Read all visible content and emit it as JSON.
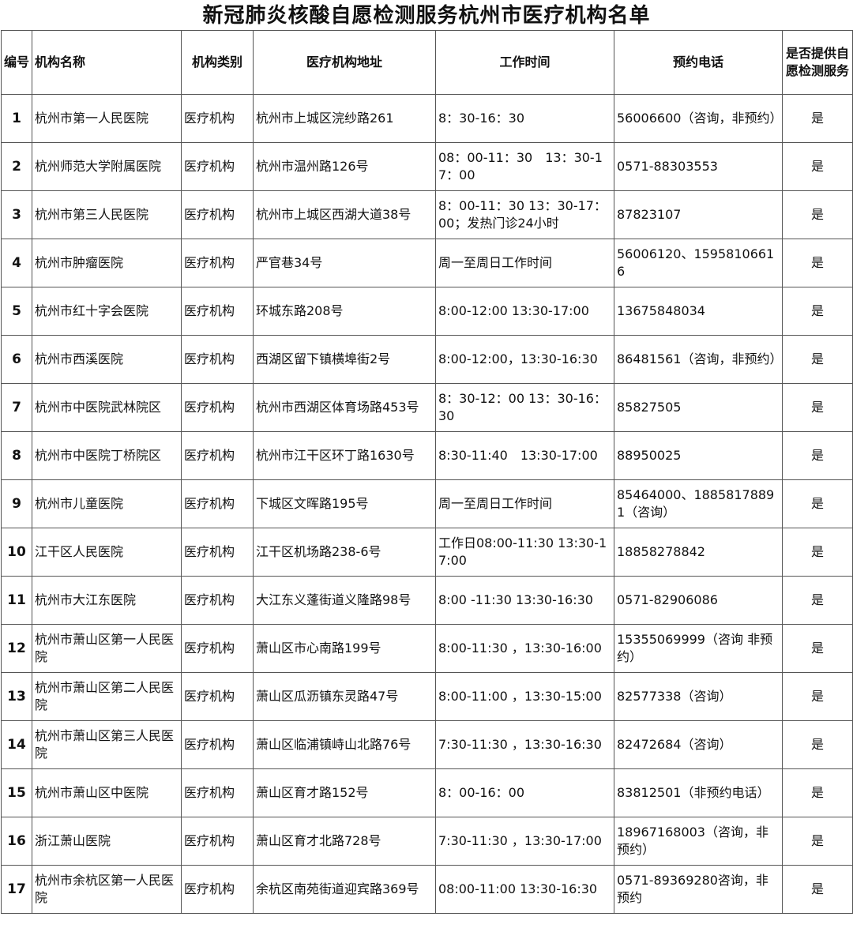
{
  "title": "新冠肺炎核酸自愿检测服务杭州市医疗机构名单",
  "headers": [
    "编号",
    "机构名称",
    "机构类别",
    "医疗机构地址",
    "工作时间",
    "预约电话",
    "是否提供自愿检测服务"
  ],
  "rows": [
    [
      "1",
      "杭州市第一人民医院",
      "医疗机构",
      "杭州市上城区浣纱路261",
      "8：30-16：30",
      "56006600（咨询，非预约）",
      "是"
    ],
    [
      "2",
      "杭州师范大学附属医院",
      "医疗机构",
      "杭州市温州路126号",
      "08：00-11：30　13：30-17：00",
      "0571-88303553",
      "是"
    ],
    [
      "3",
      "杭州市第三人民医院",
      "医疗机构",
      "杭州市上城区西湖大道38号",
      "8：00-11：30 13：30-17：00；发热门诊24小时",
      "87823107",
      "是"
    ],
    [
      "4",
      "杭州市肿瘤医院",
      "医疗机构",
      "严官巷34号",
      "周一至周日工作时间",
      "56006120、15958106616",
      "是"
    ],
    [
      "5",
      "杭州市红十字会医院",
      "医疗机构",
      "环城东路208号",
      "8:00-12:00 13:30-17:00",
      "13675848034",
      "是"
    ],
    [
      "6",
      "杭州市西溪医院",
      "医疗机构",
      "西湖区留下镇横埠街2号",
      "8:00-12:00，13:30-16:30",
      "86481561（咨询，非预约）",
      "是"
    ],
    [
      "7",
      "杭州市中医院武林院区",
      "医疗机构",
      "杭州市西湖区体育场路453号",
      "8：30-12：00 13：30-16：30",
      "85827505",
      "是"
    ],
    [
      "8",
      "杭州市中医院丁桥院区",
      "医疗机构",
      "杭州市江干区环丁路1630号",
      "8:30-11:40　13:30-17:00",
      "88950025",
      "是"
    ],
    [
      "9",
      "杭州市儿童医院",
      "医疗机构",
      "下城区文晖路195号",
      "周一至周日工作时间",
      "85464000、18858178891（咨询）",
      "是"
    ],
    [
      "10",
      "江干区人民医院",
      "医疗机构",
      "江干区机场路238-6号",
      "工作日08:00-11:30 13:30-17:00",
      "18858278842",
      "是"
    ],
    [
      "11",
      "杭州市大江东医院",
      "医疗机构",
      "大江东义蓬街道义隆路98号",
      "8:00 -11:30 13:30-16:30",
      "0571-82906086",
      "是"
    ],
    [
      "12",
      "杭州市萧山区第一人民医院",
      "医疗机构",
      "萧山区市心南路199号",
      "8:00-11:30 ，13:30-16:00",
      "15355069999（咨询 非预约）",
      "是"
    ],
    [
      "13",
      "杭州市萧山区第二人民医院",
      "医疗机构",
      "萧山区瓜沥镇东灵路47号",
      "8:00-11:00 ，13:30-15:00",
      "82577338（咨询）",
      "是"
    ],
    [
      "14",
      "杭州市萧山区第三人民医院",
      "医疗机构",
      "萧山区临浦镇峙山北路76号",
      "7:30-11:30 ，13:30-16:30",
      "82472684（咨询）",
      "是"
    ],
    [
      "15",
      "杭州市萧山区中医院",
      "医疗机构",
      "萧山区育才路152号",
      "8：00-16：00",
      "83812501（非预约电话）",
      "是"
    ],
    [
      "16",
      "浙江萧山医院",
      "医疗机构",
      "萧山区育才北路728号",
      "7:30-11:30 ，13:30-17:00",
      "18967168003（咨询，非预约）",
      "是"
    ],
    [
      "17",
      "杭州市余杭区第一人民医院",
      "医疗机构",
      "余杭区南苑街道迎宾路369号",
      "08:00-11:00 13:30-16:30",
      "0571-89369280咨询，非预约",
      "是"
    ]
  ]
}
